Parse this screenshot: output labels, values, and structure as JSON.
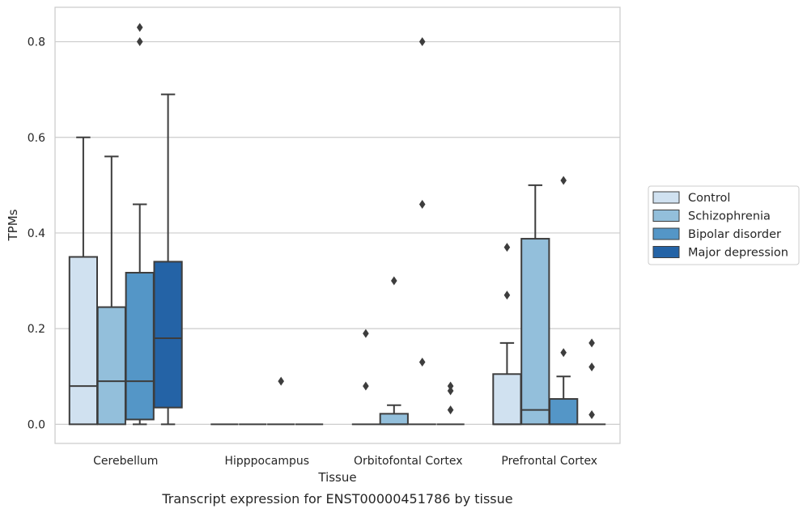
{
  "chart_data": {
    "type": "box",
    "title": "",
    "caption": "Transcript expression for ENST00000451786 by tissue",
    "xlabel": "Tissue",
    "ylabel": "TPMs",
    "ylim": [
      -0.04,
      0.872
    ],
    "yticks": [
      0.0,
      0.2,
      0.4,
      0.6,
      0.8
    ],
    "ytick_labels": [
      "0.0",
      "0.2",
      "0.4",
      "0.6",
      "0.8"
    ],
    "grid": "horizontal",
    "legend_placement": "right",
    "categories": [
      "Cerebellum",
      "Hipppocampus",
      "Orbitofontal Cortex",
      "Prefrontal Cortex"
    ],
    "series": [
      {
        "name": "Control",
        "color": "#d0e1f0",
        "boxes": [
          {
            "q1": 0.0,
            "median": 0.08,
            "q3": 0.35,
            "whisker_low": 0.0,
            "whisker_high": 0.6,
            "outliers": []
          },
          {
            "q1": 0.0,
            "median": 0.0,
            "q3": 0.0,
            "whisker_low": 0.0,
            "whisker_high": 0.0,
            "outliers": []
          },
          {
            "q1": 0.0,
            "median": 0.0,
            "q3": 0.0,
            "whisker_low": 0.0,
            "whisker_high": 0.0,
            "outliers": [
              0.19,
              0.08
            ]
          },
          {
            "q1": 0.0,
            "median": 0.0,
            "q3": 0.105,
            "whisker_low": 0.0,
            "whisker_high": 0.17,
            "outliers": [
              0.37,
              0.27
            ]
          }
        ]
      },
      {
        "name": "Schizophrenia",
        "color": "#93bfdb",
        "boxes": [
          {
            "q1": 0.0,
            "median": 0.09,
            "q3": 0.245,
            "whisker_low": 0.0,
            "whisker_high": 0.56,
            "outliers": []
          },
          {
            "q1": 0.0,
            "median": 0.0,
            "q3": 0.0,
            "whisker_low": 0.0,
            "whisker_high": 0.0,
            "outliers": []
          },
          {
            "q1": 0.0,
            "median": 0.0,
            "q3": 0.022,
            "whisker_low": 0.0,
            "whisker_high": 0.04,
            "outliers": [
              0.3
            ]
          },
          {
            "q1": 0.0,
            "median": 0.03,
            "q3": 0.388,
            "whisker_low": 0.0,
            "whisker_high": 0.5,
            "outliers": []
          }
        ]
      },
      {
        "name": "Bipolar disorder",
        "color": "#5496c7",
        "boxes": [
          {
            "q1": 0.01,
            "median": 0.09,
            "q3": 0.317,
            "whisker_low": 0.0,
            "whisker_high": 0.46,
            "outliers": [
              0.83,
              0.8
            ]
          },
          {
            "q1": 0.0,
            "median": 0.0,
            "q3": 0.0,
            "whisker_low": 0.0,
            "whisker_high": 0.0,
            "outliers": [
              0.09
            ]
          },
          {
            "q1": 0.0,
            "median": 0.0,
            "q3": 0.0,
            "whisker_low": 0.0,
            "whisker_high": 0.0,
            "outliers": [
              0.8,
              0.46,
              0.13
            ]
          },
          {
            "q1": 0.0,
            "median": 0.0,
            "q3": 0.053,
            "whisker_low": 0.0,
            "whisker_high": 0.1,
            "outliers": [
              0.51,
              0.15
            ]
          }
        ]
      },
      {
        "name": "Major depression",
        "color": "#2463a6",
        "boxes": [
          {
            "q1": 0.035,
            "median": 0.18,
            "q3": 0.34,
            "whisker_low": 0.0,
            "whisker_high": 0.69,
            "outliers": []
          },
          {
            "q1": 0.0,
            "median": 0.0,
            "q3": 0.0,
            "whisker_low": 0.0,
            "whisker_high": 0.0,
            "outliers": []
          },
          {
            "q1": 0.0,
            "median": 0.0,
            "q3": 0.0,
            "whisker_low": 0.0,
            "whisker_high": 0.0,
            "outliers": [
              0.08,
              0.07,
              0.03
            ]
          },
          {
            "q1": 0.0,
            "median": 0.0,
            "q3": 0.0,
            "whisker_low": 0.0,
            "whisker_high": 0.0,
            "outliers": [
              0.17,
              0.12,
              0.02
            ]
          }
        ]
      }
    ]
  }
}
